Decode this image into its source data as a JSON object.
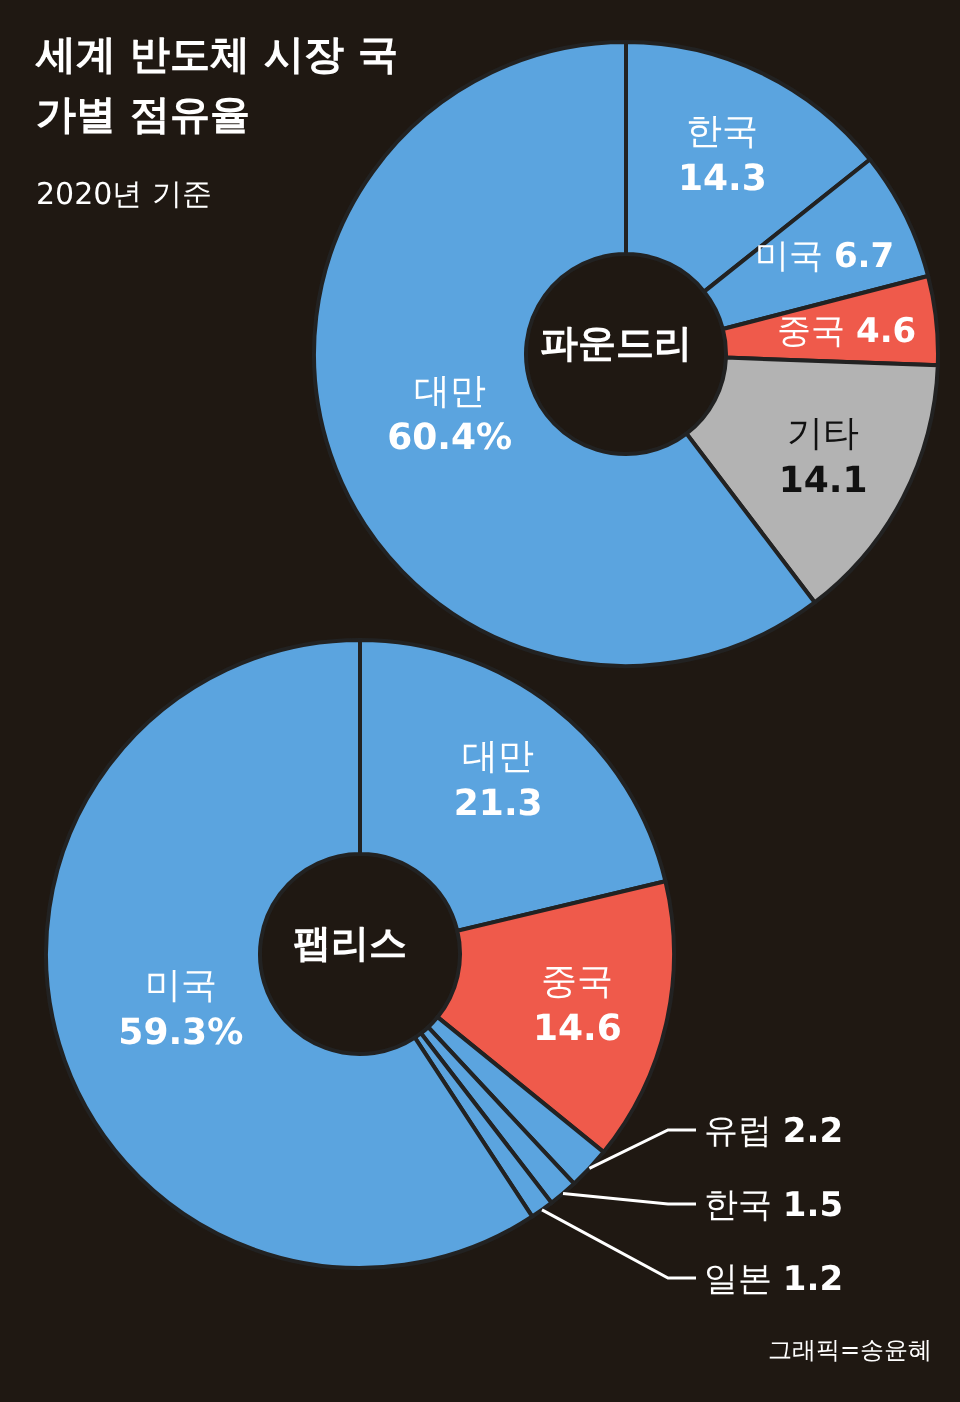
{
  "chart_data": [
    {
      "type": "donut",
      "title": "세계 반도체 시장 국가별 점유율",
      "subtitle": "2020년 기준",
      "annotations": [
        "파운드리"
      ],
      "categories": [
        "한국",
        "미국",
        "중국",
        "기타",
        "대만"
      ],
      "values": [
        14.3,
        6.7,
        4.6,
        14.1,
        60.4
      ],
      "colors": [
        "#5ba4df",
        "#5ba4df",
        "#ef5a4b",
        "#b3b3b3",
        "#5ba4df"
      ],
      "value_labels": [
        "14.3",
        "6.7",
        "4.6",
        "14.1",
        "60.4%"
      ],
      "legend": false
    },
    {
      "type": "donut",
      "annotations": [
        "팹리스",
        "그래픽=송윤혜"
      ],
      "categories": [
        "대만",
        "중국",
        "유럽",
        "한국",
        "일본",
        "미국"
      ],
      "values": [
        21.3,
        14.6,
        2.2,
        1.5,
        1.2,
        59.3
      ],
      "colors": [
        "#5ba4df",
        "#ef5a4b",
        "#5ba4df",
        "#5ba4df",
        "#5ba4df",
        "#5ba4df"
      ],
      "value_labels": [
        "21.3",
        "14.6",
        "2.2",
        "1.5",
        "1.2",
        "59.3%"
      ],
      "legend": false
    }
  ]
}
